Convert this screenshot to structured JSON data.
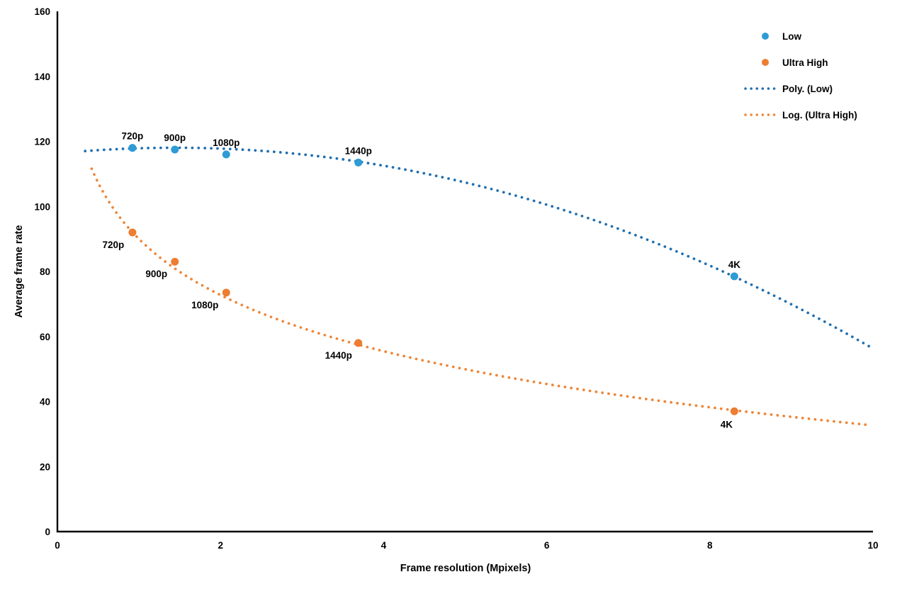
{
  "chart_data": {
    "type": "scatter",
    "title": "",
    "xlabel": "Frame resolution (Mpixels)",
    "ylabel": "Average frame rate",
    "xlim": [
      0,
      10
    ],
    "ylim": [
      0,
      160
    ],
    "x_ticks": [
      0,
      2,
      4,
      6,
      8,
      10
    ],
    "y_ticks": [
      0,
      20,
      40,
      60,
      80,
      100,
      120,
      140,
      160
    ],
    "grid": false,
    "legend_position": "top-right",
    "colors": {
      "low_marker": "#2E9BD5",
      "low_trendline": "#1F6FB0",
      "ultra_marker": "#ED7D31",
      "ultra_trendline": "#EE8638",
      "axis": "#000000",
      "text": "#000000"
    },
    "series": [
      {
        "name": "Low",
        "color": "#2E9BD5",
        "points": [
          {
            "x": 0.92,
            "y": 118,
            "label": "720p"
          },
          {
            "x": 1.44,
            "y": 117.5,
            "label": "900p"
          },
          {
            "x": 2.07,
            "y": 116,
            "label": "1080p"
          },
          {
            "x": 3.69,
            "y": 113.5,
            "label": "1440p"
          },
          {
            "x": 8.3,
            "y": 78.5,
            "label": "4K"
          }
        ]
      },
      {
        "name": "Ultra High",
        "color": "#ED7D31",
        "points": [
          {
            "x": 0.92,
            "y": 92,
            "label": "720p"
          },
          {
            "x": 1.44,
            "y": 83,
            "label": "900p"
          },
          {
            "x": 2.07,
            "y": 73.5,
            "label": "1080p"
          },
          {
            "x": 3.69,
            "y": 58,
            "label": "1440p"
          },
          {
            "x": 8.3,
            "y": 37,
            "label": "4K"
          }
        ]
      }
    ],
    "trendlines": [
      {
        "name": "Poly. (Low)",
        "series": "Low",
        "fit": "polynomial2",
        "coeffs": [
          116.3,
          2.43,
          -0.843
        ],
        "x_start": 0.34,
        "x_end": 10,
        "color": "#1F6FB0"
      },
      {
        "name": "Log. (Ultra High)",
        "series": "Ultra High",
        "fit": "logarithmic",
        "coeffs": [
          90.0,
          -24.9
        ],
        "x_start": 0.42,
        "x_end": 10,
        "color": "#EE8638"
      }
    ],
    "legend_entries": [
      {
        "label": "Low",
        "swatch": "dot",
        "color": "#2E9BD5"
      },
      {
        "label": "Ultra High",
        "swatch": "dot",
        "color": "#ED7D31"
      },
      {
        "label": "Poly. (Low)",
        "swatch": "line",
        "color": "#1F6FB0"
      },
      {
        "label": "Log. (Ultra High)",
        "swatch": "line",
        "color": "#EE8638"
      }
    ]
  }
}
